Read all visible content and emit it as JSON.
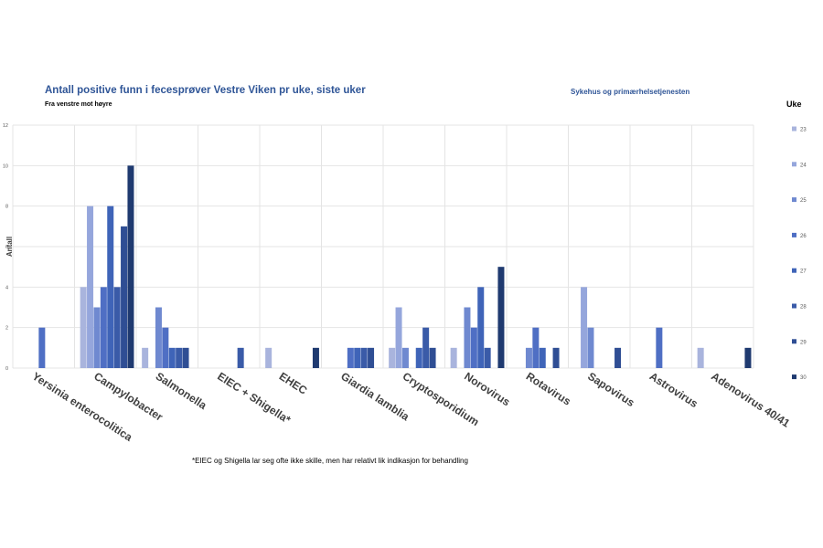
{
  "header": {
    "title": "Antall positive funn i fecesprøver Vestre Viken pr uke, siste uker",
    "subtitle": "Fra venstre mot høyre",
    "organization": "Sykehus og primærhelsetjenesten"
  },
  "legend": {
    "title": "Uke"
  },
  "footnote": "*EIEC og Shigella lar seg ofte ikke skille, men har relativt lik indikasjon for behandling",
  "chart_data": {
    "type": "bar",
    "ylabel": "Antall",
    "ylim": [
      0,
      12
    ],
    "yticks": [
      0,
      2,
      4,
      6,
      8,
      10,
      12
    ],
    "grid": true,
    "legend_position": "right",
    "categories": [
      "Yersinia enterocolitica",
      "Campylobacter",
      "Salmonella",
      "EIEC + Shigella*",
      "EHEC",
      "Giardia lamblia",
      "Cryptosporidium",
      "Norovirus",
      "Rotavirus",
      "Sapovirus",
      "Astrovirus",
      "Adenovirus 40/41"
    ],
    "series": [
      {
        "name": "23",
        "color": "#a9b4dd",
        "values": [
          0,
          4,
          1,
          0,
          1,
          0,
          1,
          1,
          0,
          0,
          0,
          1
        ]
      },
      {
        "name": "24",
        "color": "#95a6dc",
        "values": [
          0,
          8,
          0,
          0,
          0,
          0,
          3,
          0,
          0,
          4,
          0,
          0
        ]
      },
      {
        "name": "25",
        "color": "#6f89d0",
        "values": [
          0,
          3,
          3,
          0,
          0,
          0,
          1,
          3,
          1,
          2,
          0,
          0
        ]
      },
      {
        "name": "26",
        "color": "#4f6fc4",
        "values": [
          2,
          4,
          2,
          0,
          0,
          1,
          0,
          2,
          2,
          0,
          2,
          0
        ]
      },
      {
        "name": "27",
        "color": "#3f64b8",
        "values": [
          0,
          8,
          1,
          0,
          0,
          1,
          1,
          4,
          1,
          0,
          0,
          0
        ]
      },
      {
        "name": "28",
        "color": "#3a5ba8",
        "values": [
          0,
          4,
          1,
          1,
          0,
          1,
          2,
          1,
          0,
          0,
          0,
          0
        ]
      },
      {
        "name": "29",
        "color": "#2f4e94",
        "values": [
          0,
          7,
          1,
          0,
          0,
          1,
          1,
          0,
          1,
          1,
          0,
          0
        ]
      },
      {
        "name": "30",
        "color": "#1f3a70",
        "values": [
          0,
          10,
          0,
          0,
          1,
          0,
          0,
          5,
          0,
          0,
          0,
          1
        ]
      }
    ]
  }
}
